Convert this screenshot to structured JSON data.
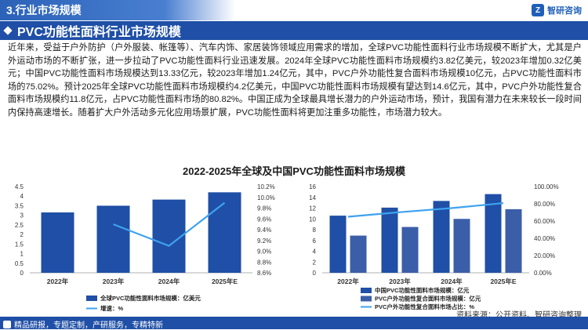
{
  "header": {
    "section_title": "3.行业市场规模",
    "logo_text": "智研咨询"
  },
  "banner": {
    "title": "PVC功能性面料行业市场规模"
  },
  "paragraph": "近年来，受益于户外防护（户外服装、帐篷等）、汽车内饰、家居装饰领域应用需求的增加，全球PVC功能性面料行业市场规模不断扩大，尤其是户外运动市场的不断扩张，进一步拉动了PVC功能性面料行业迅速发展。2024年全球PVC功能性面料市场规模约3.82亿美元，较2023年增加0.32亿美元；中国PVC功能性面料市场规模达到13.33亿元，较2023年增加1.24亿元，其中，PVC户外功能性复合面料市场规模10亿元，占PVC功能性面料市场的75.02%。预计2025年全球PVC功能性面料市场规模约4.2亿美元，中国PVC功能性面料市场规模有望达到14.6亿元，其中，PVC户外功能性复合面料市场规模约11.8亿元，占PVC功能性面料市场的80.82%。中国正成为全球最具增长潜力的户外运动市场，预计，我国有潜力在未来较长一段时间内保持高速增长。随着扩大户外活动多元化应用场景扩展，PVC功能性面料将更加注重多功能性，市场潜力较大。",
  "chart_title": "2022-2025年全球及中国PVC功能性面料市场规模",
  "chart_data": [
    {
      "type": "bar",
      "categories": [
        "2022年",
        "2023年",
        "2024年",
        "2025年E"
      ],
      "series": [
        {
          "name": "全球PVC功能性面料市场规模：亿美元",
          "kind": "bar",
          "axis": "left",
          "values": [
            3.15,
            3.5,
            3.82,
            4.2
          ]
        },
        {
          "name": "增速：%",
          "kind": "line",
          "axis": "right",
          "values": [
            null,
            9.5,
            9.1,
            9.9
          ]
        }
      ],
      "left_ticks": [
        "0",
        "0.5",
        "1",
        "1.5",
        "2",
        "2.5",
        "3",
        "3.5",
        "4",
        "4.5"
      ],
      "right_ticks": [
        "8.6%",
        "8.8%",
        "9.0%",
        "9.2%",
        "9.4%",
        "9.6%",
        "9.8%",
        "10.0%",
        "10.2%"
      ],
      "ylim_left": [
        0,
        4.5
      ],
      "ylim_right": [
        8.6,
        10.2
      ],
      "colors": {
        "bar": "#1f4fa6",
        "line": "#3fa2f0"
      }
    },
    {
      "type": "bar",
      "categories": [
        "2022年",
        "2023年",
        "2024年",
        "2025年E"
      ],
      "series": [
        {
          "name": "中国PVC功能性面料市场规模：亿元",
          "kind": "bar",
          "axis": "left",
          "values": [
            10.6,
            12.09,
            13.33,
            14.6
          ]
        },
        {
          "name": "PVC户外功能性复合面料市场规模：亿元",
          "kind": "bar",
          "axis": "left",
          "values": [
            6.9,
            8.5,
            10,
            11.8
          ]
        },
        {
          "name": "PVC户外功能性复合面料市场占比：%",
          "kind": "line",
          "axis": "right",
          "values": [
            65,
            70.3,
            75.02,
            80.82
          ]
        }
      ],
      "left_ticks": [
        "0",
        "2",
        "4",
        "6",
        "8",
        "10",
        "12",
        "14",
        "16"
      ],
      "right_ticks": [
        "0.00%",
        "20.00%",
        "40.00%",
        "60.00%",
        "80.00%",
        "100.00%"
      ],
      "ylim_left": [
        0,
        16
      ],
      "ylim_right": [
        0,
        100
      ],
      "colors": {
        "bar1": "#1f4fa6",
        "bar2": "#3b5ea8",
        "line": "#3fa2f0"
      }
    }
  ],
  "source": "资料来源：公开资料、智研咨询整理",
  "footer": {
    "text": "精品研报，专题定制，产研服务，专精特新"
  }
}
